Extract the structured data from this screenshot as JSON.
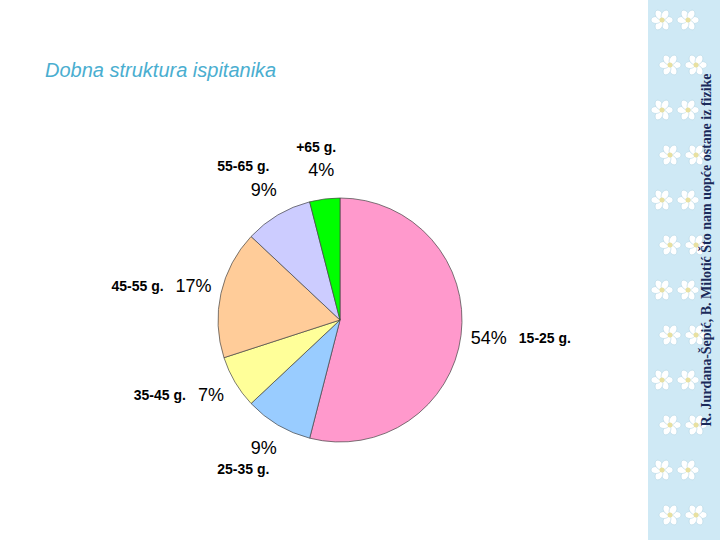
{
  "chart_data": {
    "type": "pie",
    "title": "Dobna struktura ispitanika",
    "categories": [
      "15-25 g.",
      "25-35 g.",
      "35-45 g.",
      "45-55 g.",
      "55-65 g.",
      "+65 g."
    ],
    "values": [
      54,
      9,
      7,
      17,
      9,
      4
    ],
    "value_labels": [
      "54%",
      "9%",
      "7%",
      "17%",
      "9%",
      "4%"
    ],
    "data_labels": true,
    "colors": [
      "#ff99cc",
      "#99ccff",
      "#ffff99",
      "#ffcc99",
      "#ccccff",
      "#00ff00"
    ],
    "annotations": [
      "R. Jurdana-Šepić, B. Milotić Što nam uopće ostane iz fizike"
    ]
  }
}
